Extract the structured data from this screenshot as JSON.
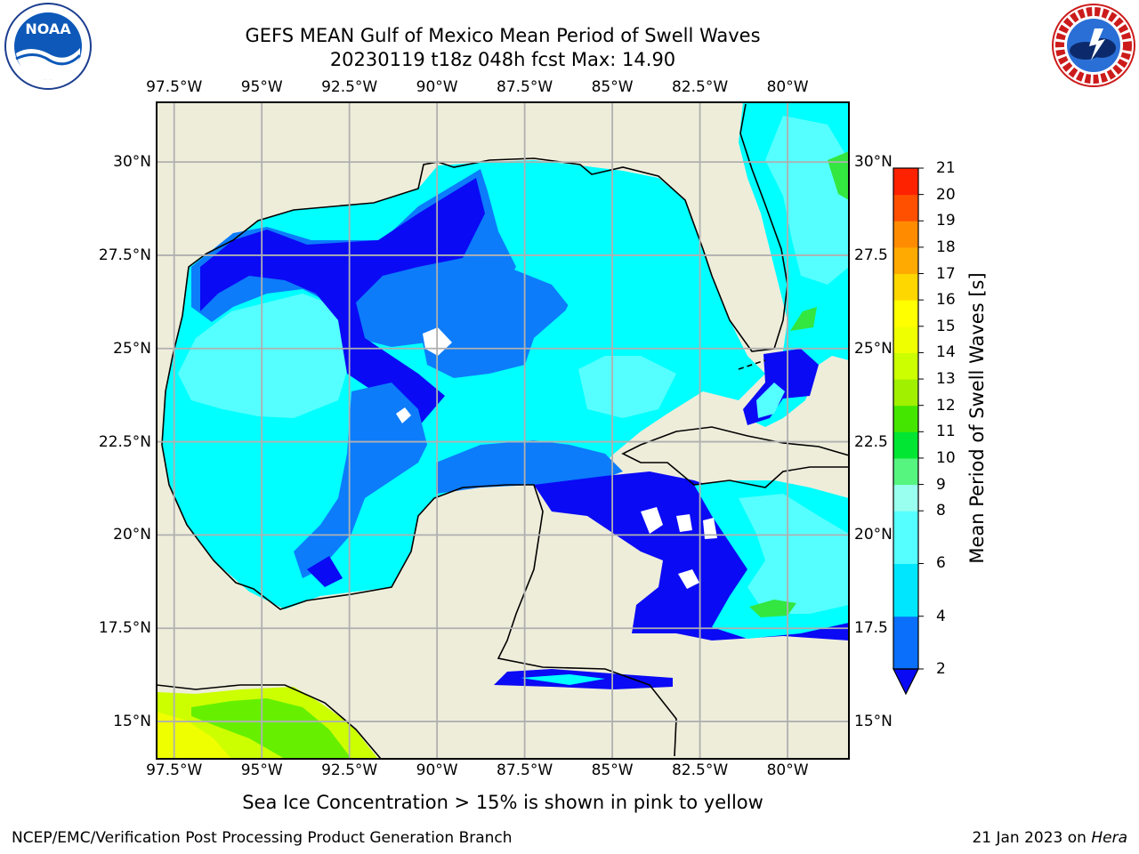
{
  "header": {
    "title_line1": "GEFS MEAN Gulf of Mexico Mean Period of Swell Waves",
    "title_line2": "20230119 t18z 048h fcst   Max: 14.90"
  },
  "logos": {
    "left": {
      "name": "NOAA",
      "text": "NOAA"
    },
    "right": {
      "name": "National Weather Service"
    }
  },
  "map": {
    "lon_labels": [
      "97.5°W",
      "95°W",
      "92.5°W",
      "90°W",
      "87.5°W",
      "85°W",
      "82.5°W",
      "80°W"
    ],
    "lon_values": [
      -97.5,
      -95,
      -92.5,
      -90,
      -87.5,
      -85,
      -82.5,
      -80
    ],
    "lat_labels_left": [
      "30°N",
      "27.5°N",
      "25°N",
      "22.5°N",
      "20°N",
      "17.5°N",
      "15°N"
    ],
    "lat_labels_right": [
      "30°N",
      "27.5",
      "25°N",
      "22.5",
      "20°N",
      "17.5",
      "15°N"
    ],
    "lat_values": [
      30,
      27.5,
      25,
      22.5,
      20,
      17.5,
      15
    ],
    "extent": {
      "lon_min": -98,
      "lon_max": -78.25,
      "lat_min": 14,
      "lat_max": 31.6
    },
    "colors": {
      "land": "#eeedda",
      "deep_blue": "#0a0af5",
      "mid_blue": "#0c7cfb",
      "cyan": "#00ffff",
      "light_cyan": "#55ffff",
      "no_data": "#ffffff",
      "grid": "#b0b0b0",
      "coast": "#000000"
    }
  },
  "colorbar": {
    "label": "Mean Period of Swell Waves [s]",
    "ticks": [
      "21",
      "20",
      "19",
      "18",
      "17",
      "16",
      "15",
      "14",
      "13",
      "12",
      "11",
      "10",
      "9",
      "8",
      "6",
      "4",
      "2"
    ],
    "levels": [
      2,
      4,
      6,
      8,
      9,
      10,
      11,
      12,
      13,
      14,
      15,
      16,
      17,
      18,
      19,
      20,
      21
    ],
    "colors": [
      "#0a6ffa",
      "#00e6ff",
      "#55ffff",
      "#99ffee",
      "#55f580",
      "#00e632",
      "#44e600",
      "#a0f000",
      "#ccff00",
      "#f0ff00",
      "#ffff00",
      "#ffd700",
      "#ffaa00",
      "#ff8c00",
      "#ff5000",
      "#ff2200"
    ],
    "extend_color": "#0a0af5"
  },
  "footer": {
    "caption": "Sea Ice Concentration > 15% is shown in pink to yellow",
    "left": "NCEP/EMC/Verification Post Processing Product Generation Branch",
    "right_date": "21 Jan 2023 on",
    "right_host": "Hera"
  }
}
